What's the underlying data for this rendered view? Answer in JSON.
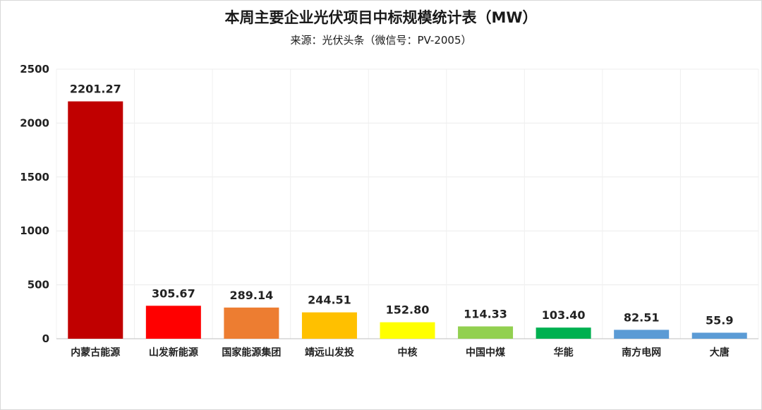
{
  "chart_data": {
    "type": "bar",
    "title": "本周主要企业光伏项目中标规模统计表（MW）",
    "subtitle": "来源：光伏头条（微信号：PV-2005）",
    "categories": [
      "内蒙古能源",
      "山发新能源",
      "国家能源集团",
      "靖远山发投",
      "中核",
      "中国中煤",
      "华能",
      "南方电网",
      "大唐"
    ],
    "values": [
      2201.27,
      305.67,
      289.14,
      244.51,
      152.8,
      114.33,
      103.4,
      82.51,
      55.9
    ],
    "data_labels": [
      "2201.27",
      "305.67",
      "289.14",
      "244.51",
      "152.80",
      "114.33",
      "103.40",
      "82.51",
      "55.9"
    ],
    "colors": [
      "#c00000",
      "#ff0000",
      "#ed7d31",
      "#ffc000",
      "#ffff00",
      "#92d050",
      "#00b050",
      "#5b9bd5",
      "#5b9bd5"
    ],
    "ylim": [
      0,
      2500
    ],
    "yticks": [
      0,
      500,
      1000,
      1500,
      2000,
      2500
    ],
    "grid": true,
    "legend": "none"
  }
}
